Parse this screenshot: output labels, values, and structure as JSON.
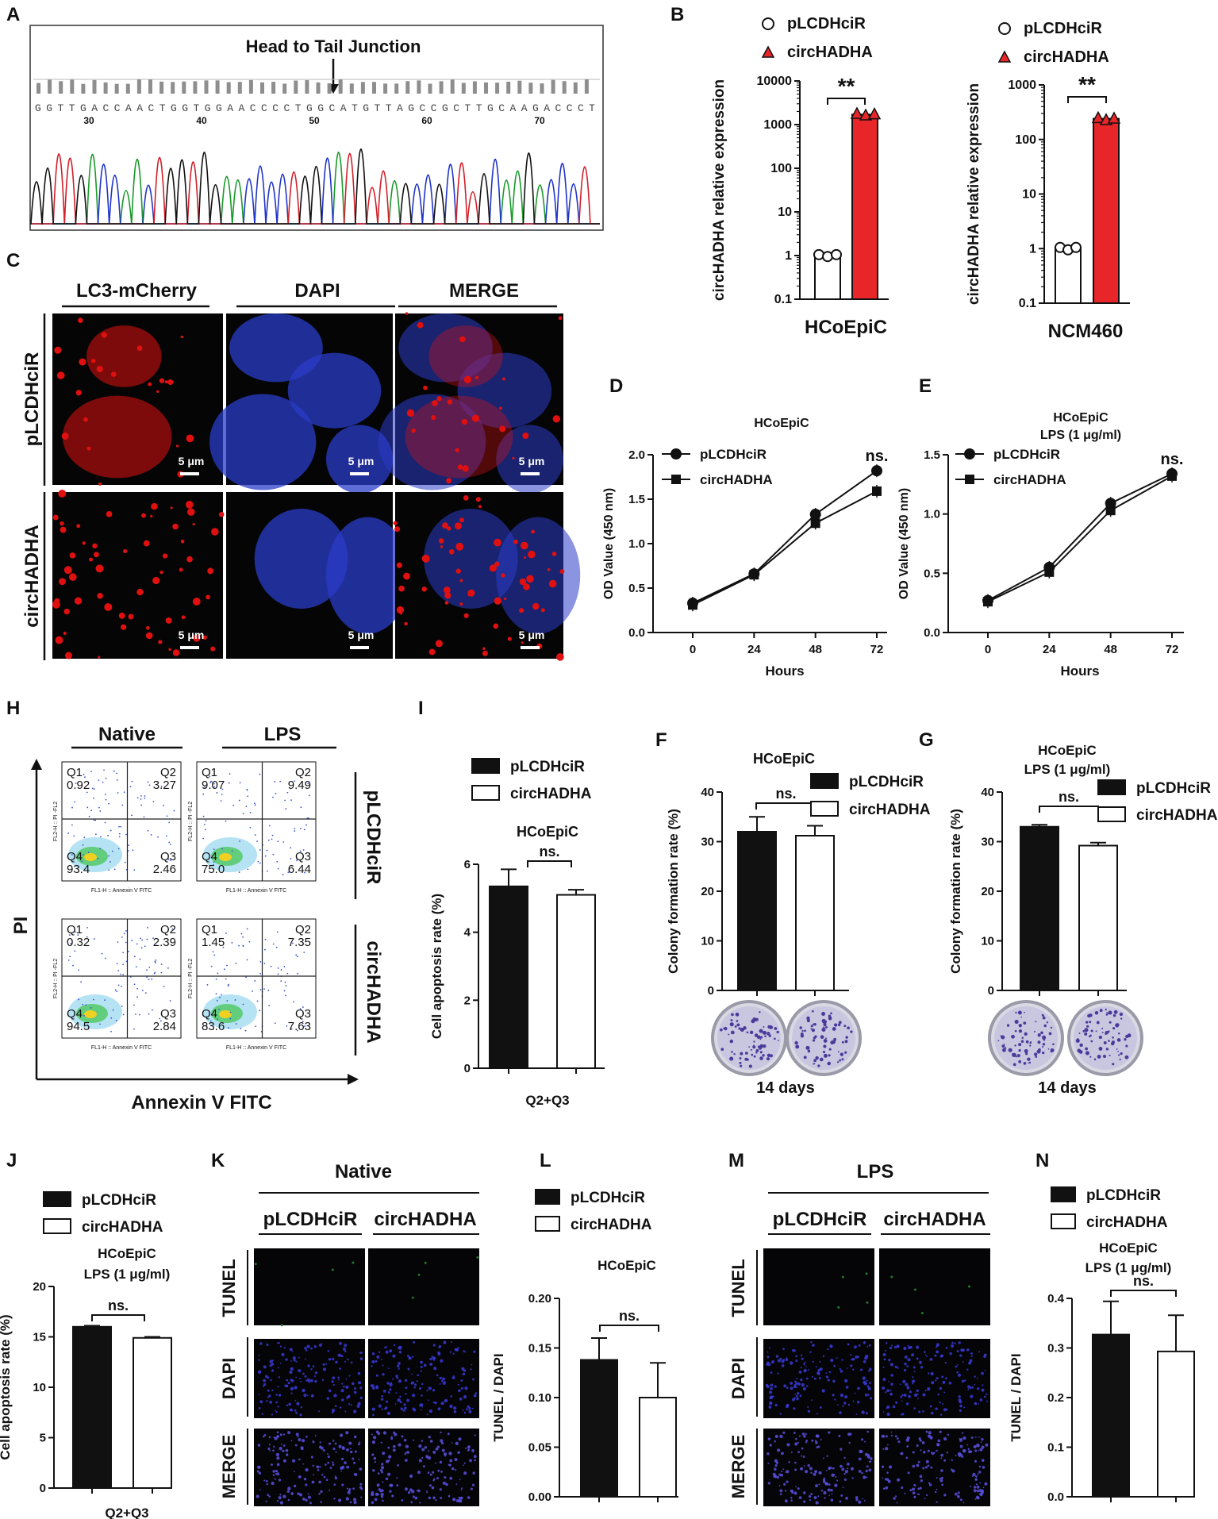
{
  "panels": {
    "A": {
      "letter": "A",
      "title": "Head to Tail Junction",
      "sequence": "GGTTGACCAACTGGTGGAACCCCTGGCATGTTAGCCGCTTGCAAGACCCT",
      "positions": [
        "30",
        "40",
        "50",
        "60",
        "70"
      ]
    },
    "B": {
      "letter": "B"
    },
    "C": {
      "letter": "C",
      "columns": [
        "LC3-mCherry",
        "DAPI",
        "MERGE"
      ],
      "rows": [
        "pLCDHciR",
        "circHADHA"
      ],
      "scalebar": "5 μm"
    },
    "D": {
      "letter": "D"
    },
    "E": {
      "letter": "E"
    },
    "F": {
      "letter": "F",
      "caption": "14 days"
    },
    "G": {
      "letter": "G",
      "caption": "14 days"
    },
    "H": {
      "letter": "H",
      "columns": [
        "Native",
        "LPS"
      ],
      "rows": [
        "pLCDHciR",
        "circHADHA"
      ],
      "yaxis": "PI",
      "xaxis": "Annexin V FITC",
      "plot_xlabel": "FL1-H :: Annexin V FITC",
      "plot_ylabel": "FL2-H :: PI -FL2",
      "quadrants": [
        {
          "q1": "0.92",
          "q2": "3.27",
          "q3": "2.46",
          "q4": "93.4"
        },
        {
          "q1": "9.07",
          "q2": "9.49",
          "q3": "6.44",
          "q4": "75.0"
        },
        {
          "q1": "0.32",
          "q2": "2.39",
          "q3": "2.84",
          "q4": "94.5"
        },
        {
          "q1": "1.45",
          "q2": "7.35",
          "q3": "7.63",
          "q4": "83.6"
        }
      ],
      "qlabels": [
        "Q1",
        "Q2",
        "Q3",
        "Q4"
      ]
    },
    "I": {
      "letter": "I"
    },
    "J": {
      "letter": "J"
    },
    "K": {
      "letter": "K",
      "header": "Native",
      "columns": [
        "pLCDHciR",
        "circHADHA"
      ],
      "rows": [
        "TUNEL",
        "DAPI",
        "MERGE"
      ]
    },
    "L": {
      "letter": "L"
    },
    "M": {
      "letter": "M",
      "header": "LPS",
      "columns": [
        "pLCDHciR",
        "circHADHA"
      ],
      "rows": [
        "TUNEL",
        "DAPI",
        "MERGE"
      ]
    },
    "N": {
      "letter": "N"
    }
  },
  "chart_data": [
    {
      "id": "B1",
      "type": "bar",
      "title": "HCoEpiC",
      "ylabel": "circHADHA relative expression",
      "yscale": "log",
      "ylim": [
        0.1,
        10000
      ],
      "yticks": [
        "0.1",
        "1",
        "10",
        "100",
        "1000",
        "10000"
      ],
      "categories": [
        "pLCDHciR",
        "circHADHA"
      ],
      "values": [
        1.0,
        1700
      ],
      "legend": [
        "pLCDHciR",
        "circHADHA"
      ],
      "significance": "**"
    },
    {
      "id": "B2",
      "type": "bar",
      "title": "NCM460",
      "ylabel": "circHADHA relative expression",
      "yscale": "log",
      "ylim": [
        0.1,
        1000
      ],
      "yticks": [
        "0.1",
        "1",
        "10",
        "100",
        "1000"
      ],
      "categories": [
        "pLCDHciR",
        "circHADHA"
      ],
      "values": [
        1.0,
        240
      ],
      "legend": [
        "pLCDHciR",
        "circHADHA"
      ],
      "significance": "**"
    },
    {
      "id": "D",
      "type": "line",
      "title": "HCoEpiC",
      "xlabel": "Hours",
      "ylabel": "OD Value (450 nm)",
      "x": [
        0,
        24,
        48,
        72
      ],
      "xticks": [
        "0",
        "24",
        "48",
        "72"
      ],
      "ylim": [
        0,
        2.0
      ],
      "yticks": [
        "0.0",
        "0.5",
        "1.0",
        "1.5",
        "2.0"
      ],
      "series": [
        {
          "name": "pLCDHciR",
          "values": [
            0.33,
            0.66,
            1.33,
            1.82
          ]
        },
        {
          "name": "circHADHA",
          "values": [
            0.31,
            0.65,
            1.23,
            1.59
          ]
        }
      ],
      "significance": "ns."
    },
    {
      "id": "E",
      "type": "line",
      "title": "HCoEpiC",
      "subtitle": "LPS (1 μg/ml)",
      "xlabel": "Hours",
      "ylabel": "OD Value (450 nm)",
      "x": [
        0,
        24,
        48,
        72
      ],
      "xticks": [
        "0",
        "24",
        "48",
        "72"
      ],
      "ylim": [
        0,
        1.5
      ],
      "yticks": [
        "0.0",
        "0.5",
        "1.0",
        "1.5"
      ],
      "series": [
        {
          "name": "pLCDHciR",
          "values": [
            0.27,
            0.55,
            1.09,
            1.34
          ]
        },
        {
          "name": "circHADHA",
          "values": [
            0.26,
            0.51,
            1.03,
            1.32
          ]
        }
      ],
      "significance": "ns."
    },
    {
      "id": "I",
      "type": "bar",
      "title": "HCoEpiC",
      "xlabel": "Q2+Q3",
      "ylabel": "Cell apoptosis rate (%)",
      "ylim": [
        0,
        6
      ],
      "yticks": [
        "0",
        "2",
        "4",
        "6"
      ],
      "categories": [
        "pLCDHciR",
        "circHADHA"
      ],
      "values": [
        5.35,
        5.1
      ],
      "errors": [
        0.5,
        0.15
      ],
      "legend": [
        "pLCDHciR",
        "circHADHA"
      ],
      "significance": "ns."
    },
    {
      "id": "F",
      "type": "bar",
      "title": "HCoEpiC",
      "ylabel": "Colony formation rate (%)",
      "ylim": [
        0,
        40
      ],
      "yticks": [
        "0",
        "10",
        "20",
        "30",
        "40"
      ],
      "categories": [
        "pLCDHciR",
        "circHADHA"
      ],
      "values": [
        32,
        31.2
      ],
      "errors": [
        3,
        2
      ],
      "legend": [
        "pLCDHciR",
        "circHADHA"
      ],
      "significance": "ns."
    },
    {
      "id": "G",
      "type": "bar",
      "title": "HCoEpiC",
      "subtitle": "LPS (1 μg/ml)",
      "ylabel": "Colony formation rate (%)",
      "ylim": [
        0,
        40
      ],
      "yticks": [
        "0",
        "10",
        "20",
        "30",
        "40"
      ],
      "categories": [
        "pLCDHciR",
        "circHADHA"
      ],
      "values": [
        33,
        29.2
      ],
      "errors": [
        0.4,
        0.6
      ],
      "legend": [
        "pLCDHciR",
        "circHADHA"
      ],
      "significance": "ns."
    },
    {
      "id": "J",
      "type": "bar",
      "title": "HCoEpiC",
      "subtitle": "LPS (1 μg/ml)",
      "xlabel": "Q2+Q3",
      "ylabel": "Cell apoptosis rate (%)",
      "ylim": [
        0,
        20
      ],
      "yticks": [
        "0",
        "5",
        "10",
        "15",
        "20"
      ],
      "categories": [
        "pLCDHciR",
        "circHADHA"
      ],
      "values": [
        16.0,
        14.9
      ],
      "errors": [
        0.1,
        0.1
      ],
      "legend": [
        "pLCDHciR",
        "circHADHA"
      ],
      "significance": "ns."
    },
    {
      "id": "L",
      "type": "bar",
      "title": "HCoEpiC",
      "ylabel": "TUNEL / DAPI",
      "ylim": [
        0,
        0.2
      ],
      "yticks": [
        "0.00",
        "0.05",
        "0.10",
        "0.15",
        "0.20"
      ],
      "categories": [
        "pLCDHciR",
        "circHADHA"
      ],
      "values": [
        0.138,
        0.1
      ],
      "errors": [
        0.022,
        0.035
      ],
      "legend": [
        "pLCDHciR",
        "circHADHA"
      ],
      "significance": "ns."
    },
    {
      "id": "N",
      "type": "bar",
      "title": "HCoEpiC",
      "subtitle": "LPS (1 μg/ml)",
      "ylabel": "TUNEL / DAPI",
      "ylim": [
        0,
        0.4
      ],
      "yticks": [
        "0.0",
        "0.1",
        "0.2",
        "0.3",
        "0.4"
      ],
      "categories": [
        "pLCDHciR",
        "circHADHA"
      ],
      "values": [
        0.327,
        0.293
      ],
      "errors": [
        0.067,
        0.073
      ],
      "legend": [
        "pLCDHciR",
        "circHADHA"
      ],
      "significance": "ns."
    }
  ],
  "colors": {
    "red": "#e8262a",
    "black": "#111111",
    "white": "#ffffff",
    "dapi": "#2a3cc8",
    "mcherry": "#e01010",
    "tunel": "#1f7a2a",
    "trace_green": "#1a9a2a",
    "trace_blue": "#2035c8",
    "trace_red": "#d2202a"
  }
}
